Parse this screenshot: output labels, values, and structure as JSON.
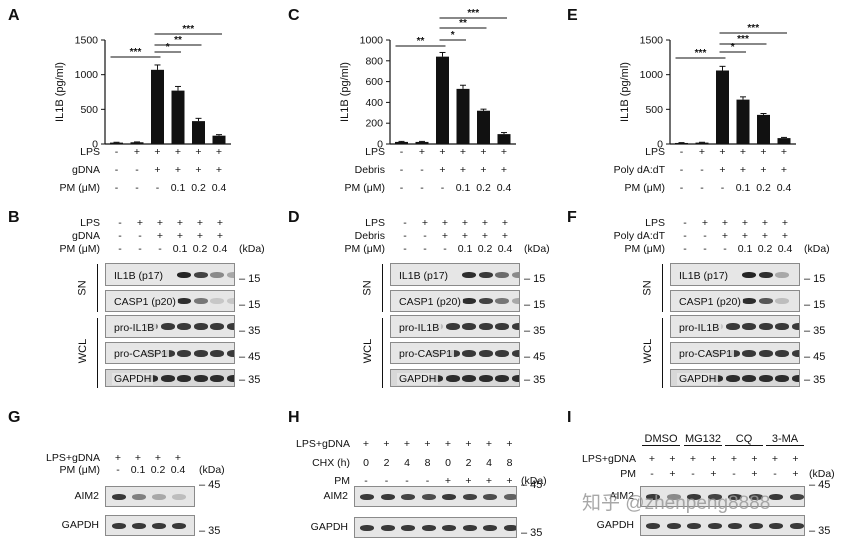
{
  "panel_labels": {
    "A": "A",
    "B": "B",
    "C": "C",
    "D": "D",
    "E": "E",
    "F": "F",
    "G": "G",
    "H": "H",
    "I": "I"
  },
  "chart_data": [
    {
      "type": "bar",
      "panel": "A",
      "ylabel": "IL1B (pg/ml)",
      "ylim": [
        0,
        1500
      ],
      "yticks": [
        "0",
        "500",
        "1000",
        "1500"
      ],
      "yticks_values": [
        0,
        500,
        1000,
        1500
      ],
      "values": [
        20,
        25,
        1070,
        770,
        330,
        120
      ],
      "errors": [
        5,
        5,
        70,
        60,
        40,
        15
      ],
      "sig": [
        "***",
        "*",
        "**",
        "***"
      ],
      "conditions": [
        {
          "label": "LPS",
          "values": [
            "-",
            "+",
            "+",
            "+",
            "+",
            "+"
          ]
        },
        {
          "label": "gDNA",
          "values": [
            "-",
            "-",
            "+",
            "+",
            "+",
            "+"
          ]
        },
        {
          "label": "PM (μM)",
          "values": [
            "-",
            "-",
            "-",
            "0.1",
            "0.2",
            "0.4"
          ]
        }
      ]
    },
    {
      "type": "bar",
      "panel": "C",
      "ylabel": "IL1B (pg/ml)",
      "ylim": [
        0,
        1000
      ],
      "yticks": [
        "0",
        "200",
        "400",
        "600",
        "800",
        "1000"
      ],
      "yticks_values": [
        0,
        200,
        400,
        600,
        800,
        1000
      ],
      "values": [
        20,
        20,
        840,
        530,
        320,
        95
      ],
      "errors": [
        5,
        5,
        40,
        35,
        15,
        15
      ],
      "sig": [
        "**",
        "*",
        "**",
        "***"
      ],
      "conditions": [
        {
          "label": "LPS",
          "values": [
            "-",
            "+",
            "+",
            "+",
            "+",
            "+"
          ]
        },
        {
          "label": "Debris",
          "values": [
            "-",
            "-",
            "+",
            "+",
            "+",
            "+"
          ]
        },
        {
          "label": "PM (μM)",
          "values": [
            "-",
            "-",
            "-",
            "0.1",
            "0.2",
            "0.4"
          ]
        }
      ]
    },
    {
      "type": "bar",
      "panel": "E",
      "ylabel": "IL1B (pg/ml)",
      "ylim": [
        0,
        1500
      ],
      "yticks": [
        "0",
        "500",
        "1000",
        "1500"
      ],
      "yticks_values": [
        0,
        500,
        1000,
        1500
      ],
      "values": [
        15,
        20,
        1060,
        640,
        420,
        85
      ],
      "errors": [
        5,
        5,
        60,
        40,
        20,
        10
      ],
      "sig": [
        "***",
        "*",
        "***",
        "***"
      ],
      "conditions": [
        {
          "label": "LPS",
          "values": [
            "-",
            "+",
            "+",
            "+",
            "+",
            "+"
          ]
        },
        {
          "label": "Poly dA:dT",
          "values": [
            "-",
            "-",
            "+",
            "+",
            "+",
            "+"
          ]
        },
        {
          "label": "PM (μM)",
          "values": [
            "-",
            "-",
            "-",
            "0.1",
            "0.2",
            "0.4"
          ]
        }
      ]
    }
  ],
  "blots": {
    "B": {
      "conditions": [
        {
          "label": "LPS",
          "values": [
            "-",
            "+",
            "+",
            "+",
            "+",
            "+"
          ]
        },
        {
          "label": "gDNA",
          "values": [
            "-",
            "-",
            "+",
            "+",
            "+",
            "+"
          ]
        },
        {
          "label": "PM (μM)",
          "values": [
            "-",
            "-",
            "-",
            "0.1",
            "0.2",
            "0.4"
          ]
        }
      ],
      "kda": "(kDa)",
      "group_sn": "SN",
      "group_wcl": "WCL",
      "rows": [
        {
          "label": "IL1B (p17)",
          "marker": "15",
          "intensity": [
            0,
            0,
            0.95,
            0.8,
            0.45,
            0.3
          ]
        },
        {
          "label": "CASP1 (p20)",
          "marker": "15",
          "intensity": [
            0,
            0,
            0.9,
            0.55,
            0.15,
            0.05
          ]
        },
        {
          "label": "pro-IL1B",
          "marker": "35",
          "intensity": [
            0.5,
            0.85,
            0.85,
            0.85,
            0.85,
            0.85
          ]
        },
        {
          "label": "pro-CASP1",
          "marker": "45",
          "intensity": [
            0.85,
            0.85,
            0.85,
            0.85,
            0.85,
            0.85
          ]
        },
        {
          "label": "GAPDH",
          "marker": "35",
          "intensity": [
            0.9,
            0.9,
            0.9,
            0.9,
            0.9,
            0.9
          ]
        }
      ]
    },
    "D": {
      "conditions": [
        {
          "label": "LPS",
          "values": [
            "-",
            "+",
            "+",
            "+",
            "+",
            "+"
          ]
        },
        {
          "label": "Debris",
          "values": [
            "-",
            "-",
            "+",
            "+",
            "+",
            "+"
          ]
        },
        {
          "label": "PM (μM)",
          "values": [
            "-",
            "-",
            "-",
            "0.1",
            "0.2",
            "0.4"
          ]
        }
      ],
      "kda": "(kDa)",
      "group_sn": "SN",
      "group_wcl": "WCL",
      "rows": [
        {
          "label": "IL1B (p17)",
          "marker": "15",
          "intensity": [
            0,
            0,
            0.9,
            0.85,
            0.6,
            0.45
          ]
        },
        {
          "label": "CASP1 (p20)",
          "marker": "15",
          "intensity": [
            0,
            0,
            0.9,
            0.8,
            0.55,
            0.3
          ]
        },
        {
          "label": "pro-IL1B",
          "marker": "35",
          "intensity": [
            0.2,
            0.85,
            0.85,
            0.85,
            0.85,
            0.85
          ]
        },
        {
          "label": "pro-CASP1",
          "marker": "45",
          "intensity": [
            0.85,
            0.85,
            0.85,
            0.85,
            0.85,
            0.85
          ]
        },
        {
          "label": "GAPDH",
          "marker": "35",
          "intensity": [
            0.9,
            0.9,
            0.9,
            0.9,
            0.9,
            0.9
          ]
        }
      ]
    },
    "F": {
      "conditions": [
        {
          "label": "LPS",
          "values": [
            "-",
            "+",
            "+",
            "+",
            "+",
            "+"
          ]
        },
        {
          "label": "Poly dA:dT",
          "values": [
            "-",
            "-",
            "+",
            "+",
            "+",
            "+"
          ]
        },
        {
          "label": "PM (μM)",
          "values": [
            "-",
            "-",
            "-",
            "0.1",
            "0.2",
            "0.4"
          ]
        }
      ],
      "kda": "(kDa)",
      "group_sn": "SN",
      "group_wcl": "WCL",
      "rows": [
        {
          "label": "IL1B (p17)",
          "marker": "15",
          "intensity": [
            0,
            0,
            0.95,
            0.9,
            0.3,
            0
          ]
        },
        {
          "label": "CASP1 (p20)",
          "marker": "15",
          "intensity": [
            0,
            0,
            0.9,
            0.7,
            0.2,
            0
          ]
        },
        {
          "label": "pro-IL1B",
          "marker": "35",
          "intensity": [
            0.15,
            0.85,
            0.85,
            0.85,
            0.85,
            0.85
          ]
        },
        {
          "label": "pro-CASP1",
          "marker": "45",
          "intensity": [
            0.85,
            0.85,
            0.85,
            0.85,
            0.85,
            0.85
          ]
        },
        {
          "label": "GAPDH",
          "marker": "35",
          "intensity": [
            0.9,
            0.9,
            0.9,
            0.9,
            0.9,
            0.9
          ]
        }
      ]
    },
    "G": {
      "conditions": [
        {
          "label": "LPS+gDNA",
          "values": [
            "+",
            "+",
            "+",
            "+"
          ]
        },
        {
          "label": "PM (μM)",
          "values": [
            "-",
            "0.1",
            "0.2",
            "0.4"
          ]
        }
      ],
      "kda": "(kDa)",
      "rows": [
        {
          "label": "AIM2",
          "marker": "45",
          "intensity": [
            0.85,
            0.5,
            0.3,
            0.2
          ]
        },
        {
          "label": "GAPDH",
          "marker": "35",
          "intensity": [
            0.85,
            0.85,
            0.85,
            0.85
          ]
        }
      ]
    },
    "H": {
      "conditions": [
        {
          "label": "LPS+gDNA",
          "values": [
            "+",
            "+",
            "+",
            "+",
            "+",
            "+",
            "+",
            "+"
          ]
        },
        {
          "label": "CHX (h)",
          "values": [
            "0",
            "2",
            "4",
            "8",
            "0",
            "2",
            "4",
            "8"
          ]
        },
        {
          "label": "PM",
          "values": [
            "-",
            "-",
            "-",
            "-",
            "+",
            "+",
            "+",
            "+"
          ]
        }
      ],
      "kda": "(kDa)",
      "rows": [
        {
          "label": "AIM2",
          "marker": "45",
          "intensity": [
            0.85,
            0.85,
            0.8,
            0.75,
            0.85,
            0.8,
            0.75,
            0.65
          ]
        },
        {
          "label": "GAPDH",
          "marker": "35",
          "intensity": [
            0.85,
            0.85,
            0.85,
            0.85,
            0.85,
            0.85,
            0.85,
            0.85
          ]
        }
      ]
    },
    "I": {
      "treatments": [
        "DMSO",
        "MG132",
        "CQ",
        "3-MA"
      ],
      "conditions": [
        {
          "label": "LPS+gDNA",
          "values": [
            "+",
            "+",
            "+",
            "+",
            "+",
            "+",
            "+",
            "+"
          ]
        },
        {
          "label": "PM",
          "values": [
            "-",
            "+",
            "-",
            "+",
            "-",
            "+",
            "-",
            "+"
          ]
        }
      ],
      "kda": "(kDa)",
      "rows": [
        {
          "label": "AIM2",
          "marker": "45",
          "intensity": [
            0.85,
            0.45,
            0.85,
            0.8,
            0.85,
            0.8,
            0.85,
            0.8
          ]
        },
        {
          "label": "GAPDH",
          "marker": "35",
          "intensity": [
            0.85,
            0.85,
            0.85,
            0.85,
            0.85,
            0.85,
            0.85,
            0.85
          ]
        }
      ]
    }
  },
  "watermark": "知乎 @zhenpeng8888"
}
